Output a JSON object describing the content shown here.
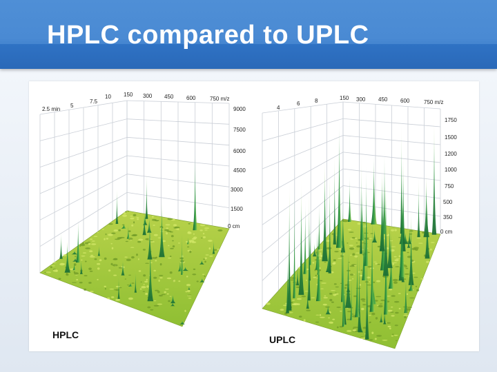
{
  "slide": {
    "title": "HPLC compared to UPLC"
  },
  "panels": [
    {
      "label": "HPLC",
      "time_ticks": [
        "2.5 min",
        "5",
        "7.5",
        "10"
      ],
      "mz_ticks": [
        "150",
        "300",
        "450",
        "600",
        "750 m/z"
      ],
      "intensity_ticks": [
        "9000",
        "7500",
        "6000",
        "4500",
        "3000",
        "1500",
        "0 cm"
      ]
    },
    {
      "label": "UPLC",
      "time_ticks": [
        "4",
        "6",
        "8"
      ],
      "mz_ticks": [
        "150",
        "300",
        "450",
        "600",
        "750 m/z"
      ],
      "intensity_ticks": [
        "1750",
        "1500",
        "1200",
        "1000",
        "750",
        "500",
        "350",
        "0 cm"
      ]
    }
  ],
  "colors": {
    "header": "#4a8ad3",
    "surface": "#9dc43a",
    "peak": "#1f8a3a",
    "grid": "#c9ced6"
  }
}
